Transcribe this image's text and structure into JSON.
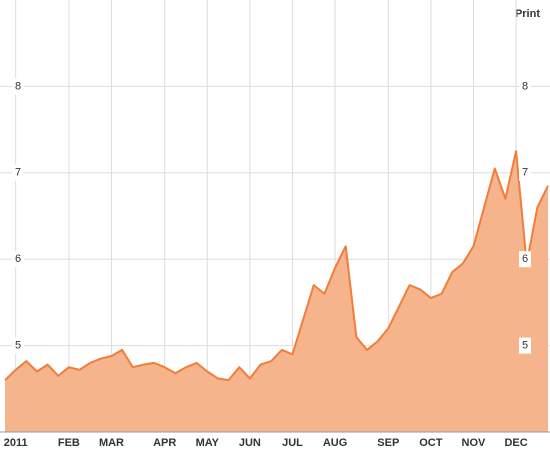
{
  "chart_data": {
    "type": "area",
    "action": "Print",
    "categories": [
      null,
      "2011",
      null,
      null,
      null,
      null,
      "FEB",
      null,
      null,
      null,
      "MAR",
      null,
      null,
      null,
      null,
      "APR",
      null,
      null,
      null,
      "MAY",
      null,
      null,
      null,
      "JUN",
      null,
      null,
      null,
      "JUL",
      null,
      null,
      null,
      "AUG",
      null,
      null,
      null,
      null,
      "SEP",
      null,
      null,
      null,
      "OCT",
      null,
      null,
      null,
      "NOV",
      null,
      null,
      null,
      "DEC",
      null,
      null,
      null
    ],
    "values": [
      4.6,
      4.72,
      4.82,
      4.7,
      4.78,
      4.65,
      4.75,
      4.72,
      4.8,
      4.85,
      4.88,
      4.95,
      4.75,
      4.78,
      4.8,
      4.75,
      4.68,
      4.75,
      4.8,
      4.7,
      4.62,
      4.6,
      4.75,
      4.62,
      4.78,
      4.82,
      4.95,
      4.9,
      5.3,
      5.7,
      5.6,
      5.9,
      6.15,
      5.1,
      4.95,
      5.05,
      5.2,
      5.45,
      5.7,
      5.65,
      5.55,
      5.6,
      5.85,
      5.95,
      6.15,
      6.6,
      7.05,
      6.7,
      7.25,
      5.95,
      6.6,
      6.85
    ],
    "color": "#f07d3c",
    "fill": "#f5b48b",
    "ylim": [
      4,
      9
    ],
    "yticks": [
      5,
      6,
      7,
      8
    ],
    "grid": true
  }
}
